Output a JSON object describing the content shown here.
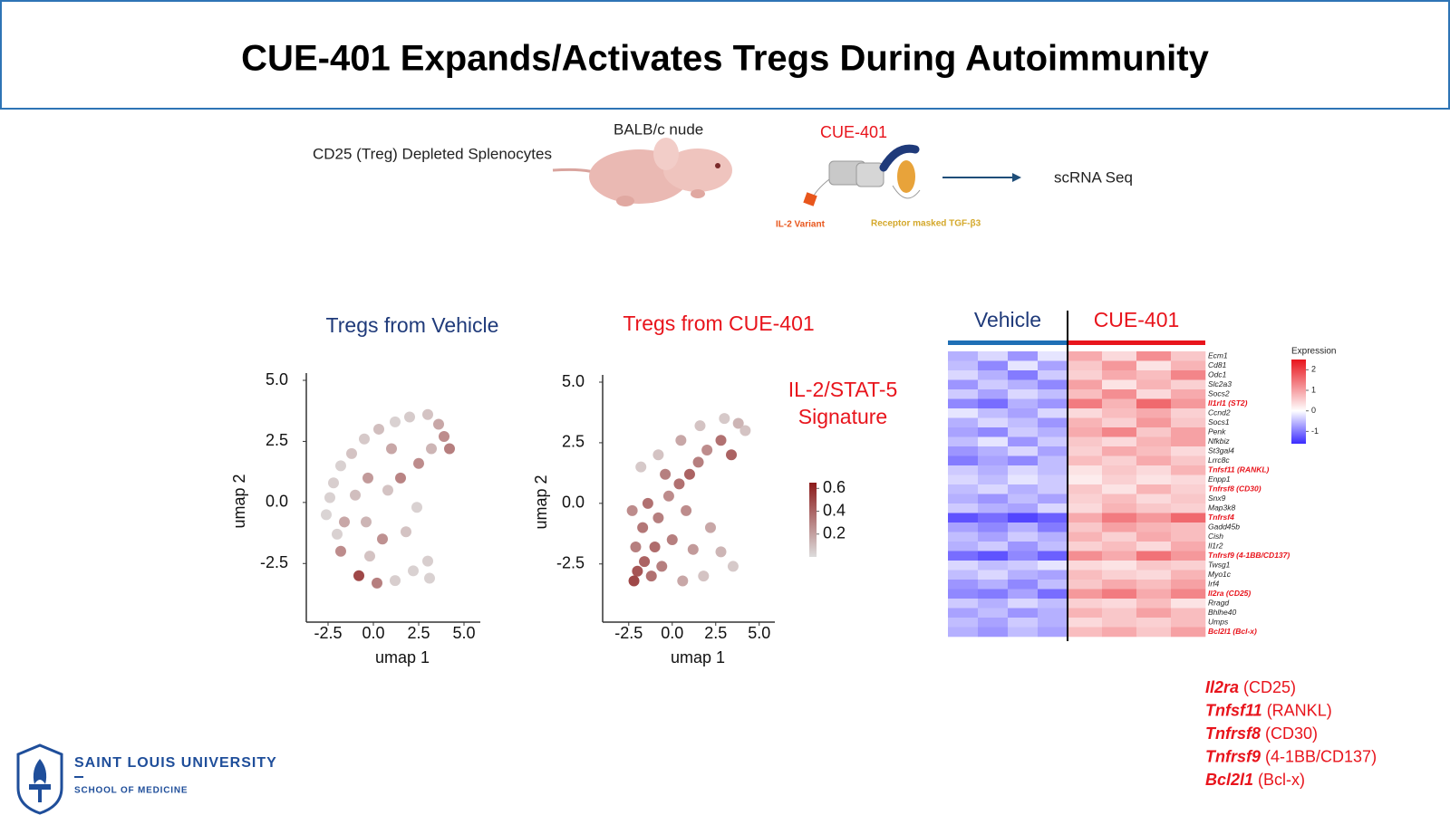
{
  "header": {
    "title": "CUE-401 Expands/Activates Tregs During Autoimmunity"
  },
  "schematic": {
    "source": "CD25 (Treg) Depleted Splenocytes",
    "host": "BALB/c nude",
    "drug": "CUE-401",
    "part_a": "IL-2 Variant",
    "part_b": "Receptor masked TGF-β3",
    "readout": "scRNA Seq"
  },
  "chart_data": [
    {
      "type": "scatter",
      "title": "Tregs from Vehicle",
      "title_color": "#1f3a7a",
      "xlabel": "umap 1",
      "ylabel": "umap 2",
      "xlim": [
        -3.7,
        5.9
      ],
      "ylim": [
        -4.9,
        5.0
      ],
      "xticks": [
        -2.5,
        {
          "value": 0,
          "label": "0.0"
        },
        2.5,
        {
          "value": 5,
          "label": "5.0"
        }
      ],
      "yticks": [
        {
          "value": 5,
          "label": "5.0"
        },
        2.5,
        {
          "value": 0,
          "label": "0.0"
        },
        -2.5
      ],
      "clim": [
        0,
        0.65
      ],
      "low_color": "#dcdcdc",
      "high_color": "#8b1a1a",
      "x": [
        -2.4,
        -2.6,
        -2.2,
        -1.8,
        -1.2,
        -0.5,
        0.3,
        1.2,
        2.0,
        3.0,
        3.6,
        3.9,
        4.2,
        3.2,
        2.5,
        1.5,
        0.8,
        -0.3,
        -1.0,
        -1.6,
        -0.4,
        0.5,
        1.8,
        2.4,
        -1.8,
        -0.8,
        0.2,
        1.2,
        2.2,
        3.0,
        3.1,
        -0.2,
        -2.0,
        1.0
      ],
      "y": [
        0.2,
        -0.5,
        0.8,
        1.5,
        2.0,
        2.6,
        3.0,
        3.3,
        3.5,
        3.6,
        3.2,
        2.7,
        2.2,
        2.2,
        1.6,
        1.0,
        0.5,
        1.0,
        0.3,
        -0.8,
        -0.8,
        -1.5,
        -1.2,
        -0.2,
        -2.0,
        -3.0,
        -3.3,
        -3.2,
        -2.8,
        -2.4,
        -3.1,
        -2.2,
        -1.3,
        2.2
      ],
      "values": [
        0.05,
        0.04,
        0.06,
        0.05,
        0.1,
        0.08,
        0.12,
        0.05,
        0.07,
        0.1,
        0.2,
        0.3,
        0.35,
        0.15,
        0.3,
        0.33,
        0.1,
        0.25,
        0.12,
        0.2,
        0.15,
        0.28,
        0.1,
        0.05,
        0.3,
        0.55,
        0.35,
        0.06,
        0.05,
        0.06,
        0.05,
        0.1,
        0.05,
        0.2
      ]
    },
    {
      "type": "scatter",
      "title": "Tregs from CUE-401",
      "title_color": "#e8141c",
      "xlabel": "umap 1",
      "ylabel": "umap 2",
      "xlim": [
        -4.0,
        5.9
      ],
      "ylim": [
        -4.9,
        5.0
      ],
      "xticks": [
        -2.5,
        {
          "value": 0,
          "label": "0.0"
        },
        2.5,
        {
          "value": 5,
          "label": "5.0"
        }
      ],
      "yticks": [
        {
          "value": 5,
          "label": "5.0"
        },
        2.5,
        {
          "value": 0,
          "label": "0.0"
        },
        -2.5
      ],
      "clim": [
        0,
        0.65
      ],
      "low_color": "#dcdcdc",
      "high_color": "#8b1a1a",
      "colorbar_title": [
        "IL-2/STAT-5",
        "Signature"
      ],
      "colorbar_ticks": [
        0.6,
        0.4,
        0.2
      ],
      "x": [
        -2.2,
        -2.0,
        -1.6,
        -1.2,
        -2.1,
        -1.7,
        -2.3,
        -1.4,
        -0.8,
        -0.2,
        0.4,
        1.0,
        1.5,
        2.0,
        2.8,
        3.4,
        3.8,
        4.2,
        3.0,
        1.6,
        0.5,
        -0.8,
        -1.8,
        -0.4,
        0.8,
        0.0,
        1.2,
        2.2,
        2.8,
        1.8,
        0.6,
        -0.6,
        3.5,
        -1.0
      ],
      "y": [
        -3.2,
        -2.8,
        -2.4,
        -3.0,
        -1.8,
        -1.0,
        -0.3,
        0.0,
        -0.6,
        0.3,
        0.8,
        1.2,
        1.7,
        2.2,
        2.6,
        2.0,
        3.3,
        3.0,
        3.5,
        3.2,
        2.6,
        2.0,
        1.5,
        1.2,
        -0.3,
        -1.5,
        -1.9,
        -1.0,
        -2.0,
        -3.0,
        -3.2,
        -2.6,
        -2.6,
        -1.8
      ],
      "values": [
        0.55,
        0.5,
        0.45,
        0.4,
        0.35,
        0.38,
        0.3,
        0.4,
        0.35,
        0.3,
        0.4,
        0.45,
        0.35,
        0.3,
        0.4,
        0.45,
        0.15,
        0.1,
        0.08,
        0.1,
        0.2,
        0.1,
        0.08,
        0.35,
        0.3,
        0.35,
        0.25,
        0.2,
        0.15,
        0.1,
        0.2,
        0.35,
        0.08,
        0.42
      ]
    },
    {
      "type": "heatmap",
      "legend_title": "Expression",
      "clim": [
        -1.6,
        2.5
      ],
      "low_color": "#3a2bff",
      "mid_color": "#ffffff",
      "high_color": "#e8141c",
      "legend_ticks": [
        2,
        1,
        0,
        -1
      ],
      "categories": [
        {
          "label": "Ecm1",
          "color": "#222"
        },
        {
          "label": "Cd81",
          "color": "#222"
        },
        {
          "label": "Odc1",
          "color": "#222"
        },
        {
          "label": "Slc2a3",
          "color": "#222"
        },
        {
          "label": "Socs2",
          "color": "#222"
        },
        {
          "label": "Il1rl1 (ST2)",
          "color": "#e8141c"
        },
        {
          "label": "Ccnd2",
          "color": "#222"
        },
        {
          "label": "Socs1",
          "color": "#222"
        },
        {
          "label": "Penk",
          "color": "#222"
        },
        {
          "label": "Nfkbiz",
          "color": "#222"
        },
        {
          "label": "St3gal4",
          "color": "#222"
        },
        {
          "label": "Lrrc8c",
          "color": "#222"
        },
        {
          "label": "Tnfsf11 (RANKL)",
          "color": "#e8141c"
        },
        {
          "label": "Enpp1",
          "color": "#222"
        },
        {
          "label": "Tnfrsf8 (CD30)",
          "color": "#e8141c"
        },
        {
          "label": "Snx9",
          "color": "#222"
        },
        {
          "label": "Map3k8",
          "color": "#222"
        },
        {
          "label": "Tnfrsf4",
          "color": "#e8141c"
        },
        {
          "label": "Gadd45b",
          "color": "#222"
        },
        {
          "label": "Cish",
          "color": "#222"
        },
        {
          "label": "Il1r2",
          "color": "#222"
        },
        {
          "label": "Tnfrsf9 (4-1BB/CD137)",
          "color": "#e8141c"
        },
        {
          "label": "Twsg1",
          "color": "#222"
        },
        {
          "label": "Myo1c",
          "color": "#222"
        },
        {
          "label": "Irf4",
          "color": "#222"
        },
        {
          "label": "Il2ra (CD25)",
          "color": "#e8141c"
        },
        {
          "label": "Rragd",
          "color": "#222"
        },
        {
          "label": "Bhlhe40",
          "color": "#222"
        },
        {
          "label": "Umps",
          "color": "#222"
        },
        {
          "label": "Bcl2l1 (Bcl-x)",
          "color": "#e8141c"
        }
      ],
      "series": [
        {
          "name": "Vehicle",
          "color": "#1f6fb5",
          "values": [
            [
              -0.6,
              -0.3,
              -0.8,
              -0.2
            ],
            [
              -0.5,
              -0.9,
              -0.2,
              -0.7
            ],
            [
              -0.3,
              -0.6,
              -1.0,
              -0.4
            ],
            [
              -0.8,
              -0.4,
              -0.6,
              -0.9
            ],
            [
              -0.4,
              -0.7,
              -0.3,
              -0.5
            ],
            [
              -0.9,
              -1.1,
              -0.6,
              -0.8
            ],
            [
              -0.2,
              -0.5,
              -0.7,
              -0.3
            ],
            [
              -0.6,
              -0.3,
              -0.5,
              -0.8
            ],
            [
              -0.7,
              -0.9,
              -0.4,
              -0.6
            ],
            [
              -0.5,
              -0.2,
              -0.8,
              -0.4
            ],
            [
              -0.8,
              -0.6,
              -0.3,
              -0.7
            ],
            [
              -1.0,
              -0.7,
              -0.9,
              -0.5
            ],
            [
              -0.4,
              -0.6,
              -0.3,
              -0.5
            ],
            [
              -0.3,
              -0.5,
              -0.2,
              -0.4
            ],
            [
              -0.5,
              -0.3,
              -0.6,
              -0.4
            ],
            [
              -0.6,
              -0.8,
              -0.5,
              -0.7
            ],
            [
              -0.4,
              -0.6,
              -0.7,
              -0.3
            ],
            [
              -1.3,
              -1.1,
              -1.4,
              -1.2
            ],
            [
              -0.7,
              -0.9,
              -0.6,
              -1.0
            ],
            [
              -0.5,
              -0.7,
              -0.4,
              -0.6
            ],
            [
              -0.6,
              -0.4,
              -0.8,
              -0.5
            ],
            [
              -1.1,
              -1.3,
              -0.9,
              -1.2
            ],
            [
              -0.3,
              -0.5,
              -0.4,
              -0.2
            ],
            [
              -0.5,
              -0.3,
              -0.6,
              -0.7
            ],
            [
              -0.8,
              -0.6,
              -0.9,
              -0.5
            ],
            [
              -0.9,
              -1.0,
              -0.7,
              -1.1
            ],
            [
              -0.4,
              -0.6,
              -0.3,
              -0.5
            ],
            [
              -0.7,
              -0.5,
              -0.8,
              -0.6
            ],
            [
              -0.5,
              -0.7,
              -0.4,
              -0.6
            ],
            [
              -0.6,
              -0.8,
              -0.5,
              -0.7
            ]
          ]
        },
        {
          "name": "CUE-401",
          "color": "#e8141c",
          "values": [
            [
              0.9,
              0.4,
              1.2,
              0.6
            ],
            [
              0.6,
              1.1,
              0.3,
              0.8
            ],
            [
              0.5,
              0.9,
              0.7,
              1.3
            ],
            [
              1.0,
              0.3,
              0.8,
              0.5
            ],
            [
              0.7,
              1.2,
              0.4,
              0.9
            ],
            [
              1.4,
              0.8,
              1.6,
              1.1
            ],
            [
              0.4,
              0.7,
              0.9,
              0.5
            ],
            [
              0.8,
              0.5,
              1.1,
              0.6
            ],
            [
              0.9,
              1.3,
              0.6,
              1.0
            ],
            [
              0.6,
              0.4,
              0.8,
              1.0
            ],
            [
              0.5,
              0.9,
              0.7,
              0.4
            ],
            [
              0.7,
              0.5,
              0.9,
              0.6
            ],
            [
              0.3,
              0.6,
              0.4,
              0.8
            ],
            [
              0.2,
              0.5,
              0.3,
              0.4
            ],
            [
              0.6,
              0.3,
              0.8,
              0.5
            ],
            [
              0.5,
              0.7,
              0.4,
              0.6
            ],
            [
              0.4,
              0.8,
              0.6,
              0.5
            ],
            [
              0.9,
              1.4,
              1.1,
              1.6
            ],
            [
              0.6,
              1.0,
              0.8,
              0.7
            ],
            [
              0.8,
              0.5,
              0.9,
              0.7
            ],
            [
              0.5,
              0.7,
              0.4,
              0.9
            ],
            [
              1.2,
              0.9,
              1.5,
              1.1
            ],
            [
              0.4,
              0.3,
              0.6,
              0.5
            ],
            [
              0.7,
              0.5,
              0.4,
              0.8
            ],
            [
              0.6,
              0.9,
              0.7,
              1.0
            ],
            [
              1.1,
              1.4,
              0.9,
              1.3
            ],
            [
              0.5,
              0.4,
              0.7,
              0.3
            ],
            [
              0.8,
              0.6,
              1.0,
              0.7
            ],
            [
              0.4,
              0.6,
              0.5,
              0.7
            ],
            [
              0.7,
              0.9,
              0.6,
              1.0
            ]
          ]
        }
      ]
    }
  ],
  "highlights": [
    {
      "gene": "Il2ra",
      "alias": "(CD25)"
    },
    {
      "gene": "Tnfsf11",
      "alias": "(RANKL)"
    },
    {
      "gene": "Tnfrsf8",
      "alias": "(CD30)"
    },
    {
      "gene": "Tnfrsf9",
      "alias": "(4-1BB/CD137)"
    },
    {
      "gene": "Bcl2l1",
      "alias": "(Bcl-x)"
    }
  ],
  "logo": {
    "name": "SAINT LOUIS UNIVERSITY",
    "school": "SCHOOL OF MEDICINE"
  }
}
